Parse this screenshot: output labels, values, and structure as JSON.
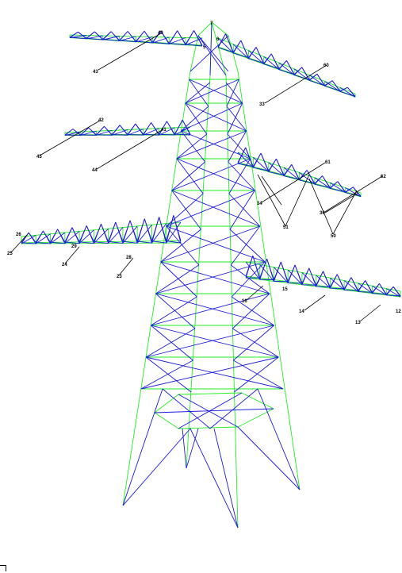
{
  "colors": {
    "chord": "#22ee22",
    "brace": "#1a1ae0",
    "leader": "#000000"
  },
  "labels": [
    "7",
    "6",
    "5",
    "40",
    "43",
    "60",
    "33",
    "42",
    "41",
    "45",
    "44",
    "61",
    "62",
    "34",
    "36",
    "51",
    "50",
    "26",
    "25",
    "24",
    "29",
    "23",
    "28",
    "15",
    "16",
    "14",
    "12",
    "13"
  ]
}
